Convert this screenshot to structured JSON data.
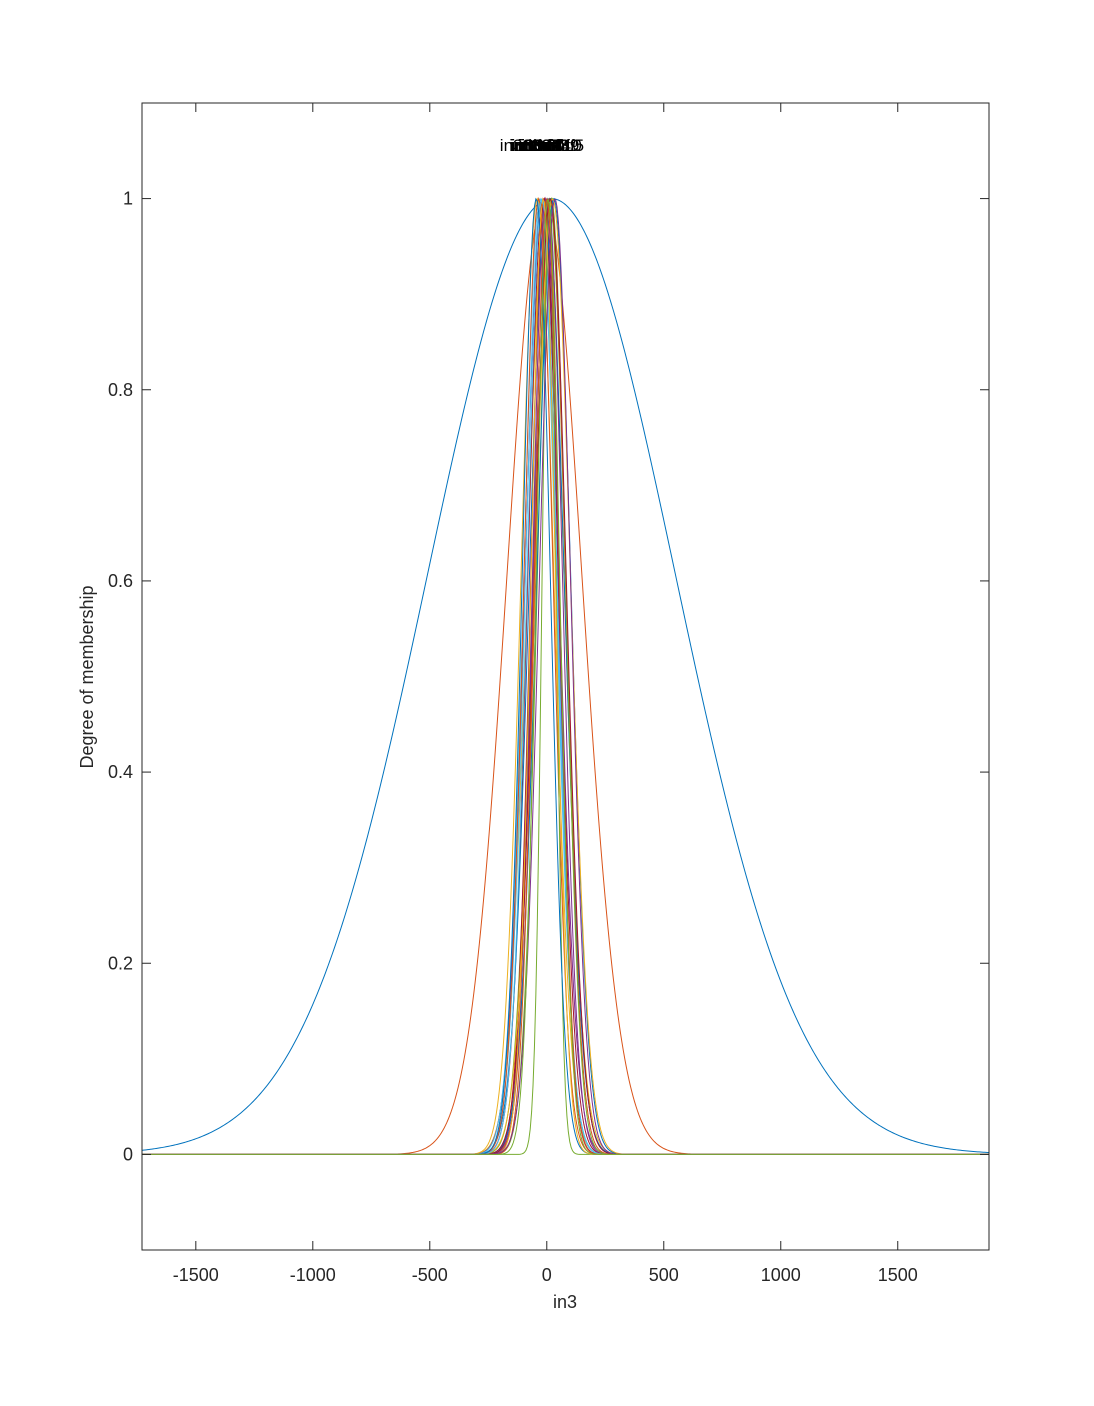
{
  "chart_data": {
    "type": "line",
    "title": "",
    "xlabel": "in3",
    "ylabel": "Degree of membership",
    "xlim": [
      -1730,
      1890
    ],
    "ylim": [
      -0.1,
      1.1
    ],
    "xticks": [
      -1500,
      -1000,
      -500,
      0,
      500,
      1000,
      1500
    ],
    "xtick_labels": [
      "-1500",
      "-1000",
      "-500",
      "0",
      "500",
      "1000",
      "1500"
    ],
    "yticks": [
      0,
      0.2,
      0.4,
      0.6,
      0.8,
      1
    ],
    "ytick_labels": [
      "0",
      "0.2",
      "0.4",
      "0.6",
      "0.8",
      "1"
    ],
    "grid": false,
    "legend": "none",
    "curve_shape": "gaussian",
    "series": [
      {
        "center": 20,
        "sigma": 530,
        "color": "#0072BD"
      },
      {
        "center": -10,
        "sigma": 160,
        "color": "#D95319"
      },
      {
        "center": -5,
        "sigma": 78,
        "color": "#EDB120"
      },
      {
        "center": -20,
        "sigma": 72,
        "color": "#7E2F8E"
      },
      {
        "center": 10,
        "sigma": 70,
        "color": "#77AC30"
      },
      {
        "center": -30,
        "sigma": 68,
        "color": "#4DBEEE"
      },
      {
        "center": -15,
        "sigma": 66,
        "color": "#A2142F"
      },
      {
        "center": 0,
        "sigma": 74,
        "color": "#0072BD"
      },
      {
        "center": 15,
        "sigma": 64,
        "color": "#D95319"
      },
      {
        "center": -40,
        "sigma": 70,
        "color": "#EDB120"
      },
      {
        "center": 5,
        "sigma": 62,
        "color": "#7E2F8E"
      },
      {
        "center": 20,
        "sigma": 60,
        "color": "#77AC30"
      },
      {
        "center": -25,
        "sigma": 66,
        "color": "#4DBEEE"
      },
      {
        "center": -10,
        "sigma": 58,
        "color": "#A2142F"
      },
      {
        "center": 30,
        "sigma": 72,
        "color": "#0072BD"
      },
      {
        "center": -35,
        "sigma": 62,
        "color": "#D95319"
      },
      {
        "center": 25,
        "sigma": 76,
        "color": "#EDB120"
      },
      {
        "center": -5,
        "sigma": 56,
        "color": "#7E2F8E"
      },
      {
        "center": 10,
        "sigma": 30,
        "color": "#77AC30"
      },
      {
        "center": -20,
        "sigma": 64,
        "color": "#4DBEEE"
      },
      {
        "center": 15,
        "sigma": 68,
        "color": "#A2142F"
      },
      {
        "center": -45,
        "sigma": 60,
        "color": "#0072BD"
      },
      {
        "center": 0,
        "sigma": 54,
        "color": "#D95319"
      },
      {
        "center": -15,
        "sigma": 52,
        "color": "#EDB120"
      },
      {
        "center": 35,
        "sigma": 66,
        "color": "#7E2F8E"
      },
      {
        "center": 5,
        "sigma": 50,
        "color": "#77AC30"
      }
    ],
    "mf_labels": [
      "in3mf1",
      "in3mf2",
      "in3mf3",
      "in3mf4",
      "in3mf5",
      "in3mf6",
      "in3mf7",
      "in3mf8",
      "in3mf9",
      "in3mf10"
    ]
  }
}
